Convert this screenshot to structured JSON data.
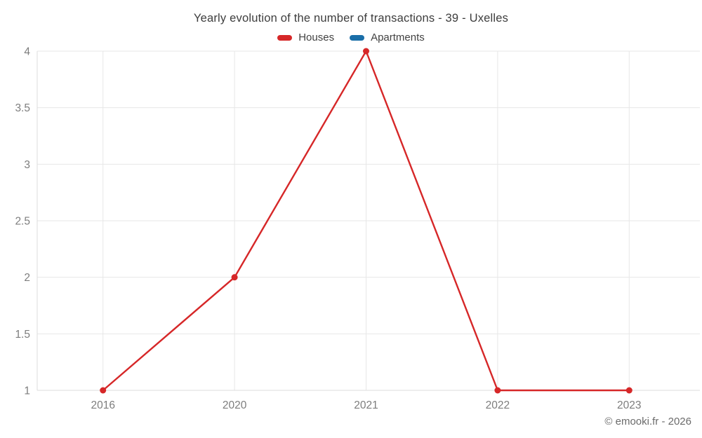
{
  "title": "Yearly evolution of the number of transactions - 39 - Uxelles",
  "footer": "© emooki.fr - 2026",
  "chart_data": {
    "type": "line",
    "title": "Yearly evolution of the number of transactions - 39 - Uxelles",
    "categories": [
      "2016",
      "2020",
      "2021",
      "2022",
      "2023"
    ],
    "series": [
      {
        "name": "Houses",
        "color": "#d62728",
        "values": [
          1,
          2,
          4,
          1,
          1
        ]
      },
      {
        "name": "Apartments",
        "color": "#1a6ea8",
        "values": []
      }
    ],
    "xlabel": "",
    "ylabel": "",
    "ylim": [
      1,
      4
    ],
    "y_ticks": [
      1,
      1.5,
      2,
      2.5,
      3,
      3.5,
      4
    ],
    "grid": true,
    "legend_position": "top",
    "colors": {
      "grid_line": "#e7e7e7",
      "axis_line": "#dcdcdc",
      "tick_text": "#7d7d7d"
    }
  }
}
